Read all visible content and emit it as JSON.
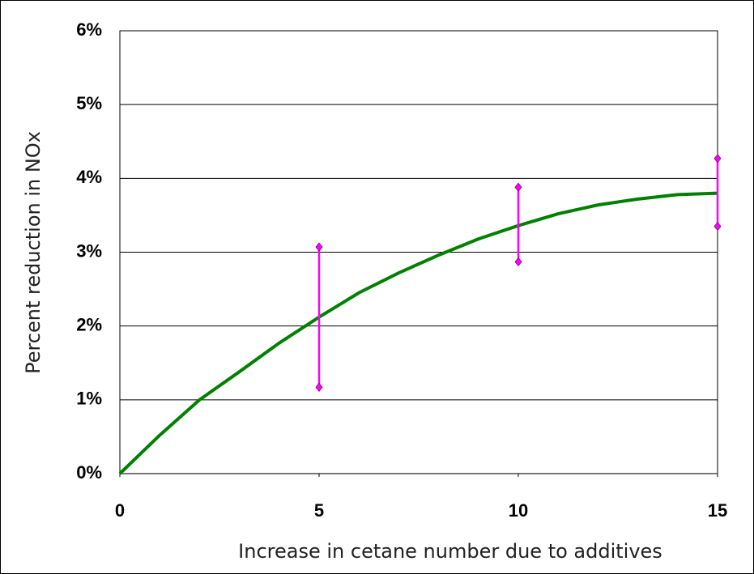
{
  "chart_data": {
    "type": "line",
    "xlabel": "Increase in cetane number due to additives",
    "ylabel": "Percent reduction in NOx",
    "x": [
      0,
      1,
      2,
      3,
      4,
      5,
      6,
      7,
      8,
      9,
      10,
      11,
      12,
      13,
      14,
      15
    ],
    "series": [
      {
        "color": "#008000",
        "values": [
          0,
          0.52,
          1.0,
          1.38,
          1.77,
          2.12,
          2.45,
          2.72,
          2.96,
          3.18,
          3.36,
          3.52,
          3.64,
          3.72,
          3.78,
          3.8
        ]
      }
    ],
    "ranges": {
      "x": [
        5,
        10,
        15
      ],
      "low": [
        1.17,
        2.87,
        3.35
      ],
      "high": [
        3.07,
        3.88,
        4.27
      ],
      "color": "#ff00ff"
    },
    "xlim": [
      0,
      15
    ],
    "xticks": [
      0,
      5,
      10,
      15
    ],
    "ylim": [
      0,
      6
    ],
    "yticks": [
      {
        "value": 0,
        "label": "0%"
      },
      {
        "value": 1,
        "label": "1%"
      },
      {
        "value": 2,
        "label": "2%"
      },
      {
        "value": 3,
        "label": "3%"
      },
      {
        "value": 4,
        "label": "4%"
      },
      {
        "value": 5,
        "label": "5%"
      },
      {
        "value": 6,
        "label": "6%"
      }
    ],
    "grid": true
  }
}
